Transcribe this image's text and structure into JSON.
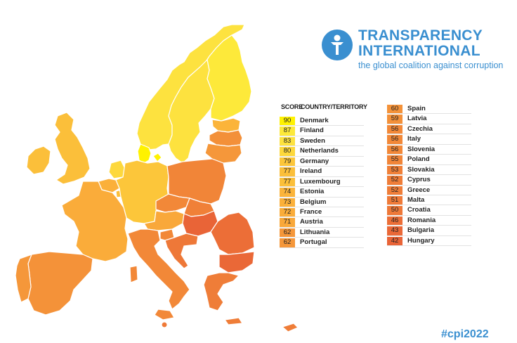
{
  "brand": {
    "title_line1": "TRANSPARENCY",
    "title_line2": "INTERNATIONAL",
    "tagline": "the global coalition against corruption",
    "color": "#3a8fd0"
  },
  "table_headers": {
    "score": "SCORE",
    "country": "COUNTRY/TERRITORY"
  },
  "rows_left": [
    {
      "score": "90",
      "country": "Denmark",
      "color": "#fff200"
    },
    {
      "score": "87",
      "country": "Finland",
      "color": "#fde93a"
    },
    {
      "score": "83",
      "country": "Sweden",
      "color": "#fde23f"
    },
    {
      "score": "80",
      "country": "Netherlands",
      "color": "#fdd83c"
    },
    {
      "score": "79",
      "country": "Germany",
      "color": "#fcc63a"
    },
    {
      "score": "77",
      "country": "Ireland",
      "color": "#fbbf3a"
    },
    {
      "score": "77",
      "country": "Luxembourg",
      "color": "#fbbf3a"
    },
    {
      "score": "74",
      "country": "Estonia",
      "color": "#fbb43a"
    },
    {
      "score": "73",
      "country": "Belgium",
      "color": "#fbb03a"
    },
    {
      "score": "72",
      "country": "France",
      "color": "#faac3a"
    },
    {
      "score": "71",
      "country": "Austria",
      "color": "#f9a83a"
    },
    {
      "score": "62",
      "country": "Lithuania",
      "color": "#f5973a"
    },
    {
      "score": "62",
      "country": "Portugal",
      "color": "#f5973a"
    }
  ],
  "rows_right": [
    {
      "score": "60",
      "country": "Spain",
      "color": "#f49239"
    },
    {
      "score": "59",
      "country": "Latvia",
      "color": "#f39039"
    },
    {
      "score": "56",
      "country": "Czechia",
      "color": "#f28838"
    },
    {
      "score": "56",
      "country": "Italy",
      "color": "#f28838"
    },
    {
      "score": "56",
      "country": "Slovenia",
      "color": "#f28838"
    },
    {
      "score": "55",
      "country": "Poland",
      "color": "#f18538"
    },
    {
      "score": "53",
      "country": "Slovakia",
      "color": "#f08038"
    },
    {
      "score": "52",
      "country": "Cyprus",
      "color": "#ef7d38"
    },
    {
      "score": "52",
      "country": "Greece",
      "color": "#ef7d38"
    },
    {
      "score": "51",
      "country": "Malta",
      "color": "#ef7a38"
    },
    {
      "score": "50",
      "country": "Croatia",
      "color": "#ee7838"
    },
    {
      "score": "46",
      "country": "Romania",
      "color": "#ec6e37"
    },
    {
      "score": "43",
      "country": "Bulgaria",
      "color": "#ea6837"
    },
    {
      "score": "42",
      "country": "Hungary",
      "color": "#e96437"
    }
  ],
  "hashtag": "#cpi2022",
  "map": {
    "legend_note": "",
    "regions": [
      {
        "name": "Finland",
        "color": "#fde93a"
      },
      {
        "name": "Sweden",
        "color": "#fde23f"
      },
      {
        "name": "Norway",
        "color": "#fde23f"
      },
      {
        "name": "Denmark",
        "color": "#fff200"
      },
      {
        "name": "Estonia",
        "color": "#fbb43a"
      },
      {
        "name": "Latvia",
        "color": "#f39039"
      },
      {
        "name": "Lithuania",
        "color": "#f5973a"
      },
      {
        "name": "Ireland",
        "color": "#fbbf3a"
      },
      {
        "name": "United Kingdom",
        "color": "#fbbf3a"
      },
      {
        "name": "Netherlands",
        "color": "#fdd83c"
      },
      {
        "name": "Belgium",
        "color": "#fbb03a"
      },
      {
        "name": "Luxembourg",
        "color": "#fbbf3a"
      },
      {
        "name": "Germany",
        "color": "#fcc63a"
      },
      {
        "name": "Poland",
        "color": "#f18538"
      },
      {
        "name": "Czechia",
        "color": "#f28838"
      },
      {
        "name": "Slovakia",
        "color": "#f08038"
      },
      {
        "name": "Austria",
        "color": "#f9a83a"
      },
      {
        "name": "Hungary",
        "color": "#e96437"
      },
      {
        "name": "France",
        "color": "#faac3a"
      },
      {
        "name": "Spain",
        "color": "#f49239"
      },
      {
        "name": "Portugal",
        "color": "#f5973a"
      },
      {
        "name": "Italy",
        "color": "#f28838"
      },
      {
        "name": "Slovenia",
        "color": "#f28838"
      },
      {
        "name": "Croatia",
        "color": "#ee7838"
      },
      {
        "name": "Romania",
        "color": "#ec6e37"
      },
      {
        "name": "Bulgaria",
        "color": "#ea6837"
      },
      {
        "name": "Greece",
        "color": "#ef7d38"
      },
      {
        "name": "Cyprus",
        "color": "#ef7d38"
      },
      {
        "name": "Malta",
        "color": "#ef7a38"
      }
    ]
  }
}
